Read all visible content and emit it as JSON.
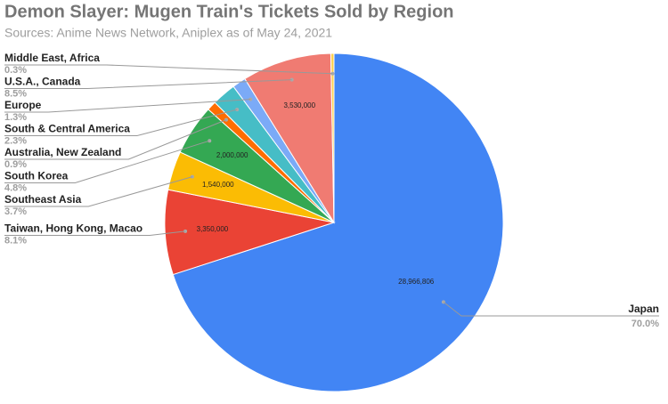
{
  "chart_data": {
    "type": "pie",
    "title": "Demon Slayer: Mugen Train's Tickets Sold by Region",
    "subtitle": "Sources: Anime News Network, Aniplex as of May 24, 2021",
    "categories": [
      "Japan",
      "Taiwan, Hong Kong, Macao",
      "Southeast Asia",
      "South Korea",
      "Australia, New Zealand",
      "South & Central America",
      "Europe",
      "U.S.A., Canada",
      "Middle East, Africa"
    ],
    "values": [
      28966806,
      3350000,
      1540000,
      2000000,
      372000,
      952000,
      538000,
      3530000,
      124000
    ],
    "value_labels": [
      "28,966,806",
      "3,350,000",
      "1,540,000",
      "2,000,000",
      null,
      null,
      null,
      "3,530,000",
      null
    ],
    "percent_labels": [
      "70.0%",
      "8.1%",
      "3.7%",
      "4.8%",
      "0.9%",
      "2.3%",
      "1.3%",
      "8.5%",
      "0.3%"
    ],
    "colors": [
      "#4285f4",
      "#ea4335",
      "#fbbc04",
      "#34a853",
      "#ff6d01",
      "#46bdc6",
      "#7baaf7",
      "#f07b72",
      "#fcd04f"
    ]
  }
}
